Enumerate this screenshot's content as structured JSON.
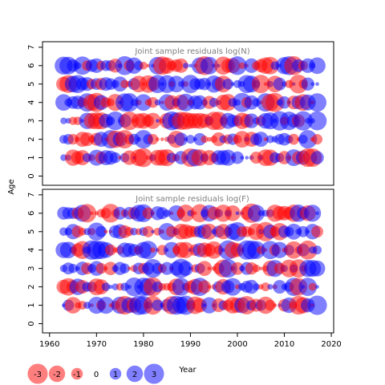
{
  "chart_data": {
    "type": "scatter",
    "variant": "bubble-residuals",
    "xlabel": "Year",
    "ylabel": "Age",
    "xlim": [
      1958.5,
      2020.5
    ],
    "ylim": [
      -0.5,
      7.3
    ],
    "x_ticks": [
      1960,
      1970,
      1980,
      1990,
      2000,
      2010,
      2020
    ],
    "y_ticks": [
      0,
      1,
      2,
      3,
      4,
      5,
      6,
      7
    ],
    "years": [
      1963,
      2017
    ],
    "ages": [
      1,
      6
    ],
    "colors": {
      "negative": "#FF000080",
      "positive": "#0000FF80",
      "title": "#7f7f7f"
    },
    "legend": {
      "placement": "bottom-left",
      "values": [
        -3,
        -2,
        -1,
        0,
        1,
        2,
        3
      ],
      "labels": [
        "-3",
        "-2",
        "-1",
        "0",
        "1",
        "2",
        "3"
      ]
    },
    "panels": [
      {
        "title": "Joint sample residuals log(N)",
        "seed": 17,
        "residual_range": [
          -2.2,
          2.2
        ],
        "note": "residuals generated procedurally — individual values not legible"
      },
      {
        "title": "Joint sample residuals log(F)",
        "seed": 91,
        "residual_range": [
          -2.2,
          2.2
        ],
        "note": "residuals generated procedurally — individual values not legible"
      }
    ]
  }
}
